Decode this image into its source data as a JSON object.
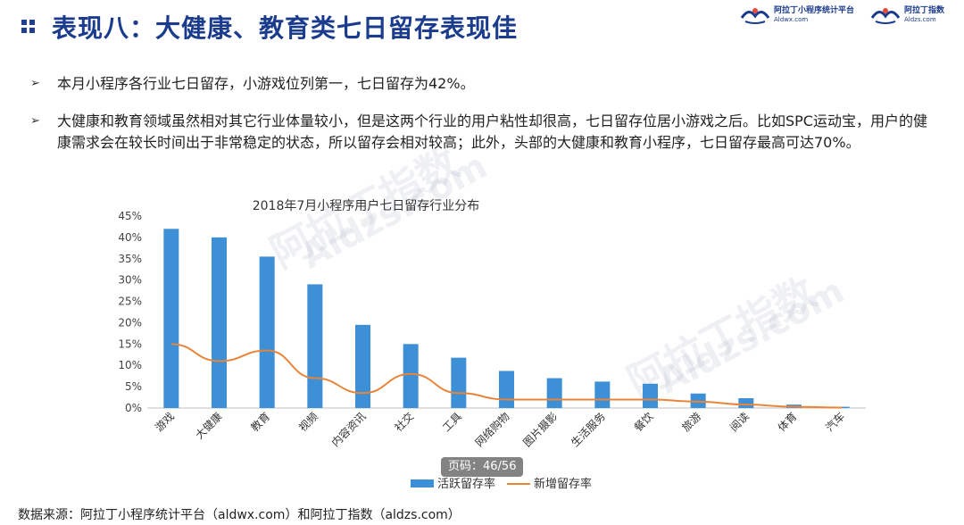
{
  "header": {
    "title": "表现八：大健康、教育类七日留存表现佳",
    "logos": [
      {
        "name": "阿拉丁小程序统计平台",
        "domain": "Aldwx.com"
      },
      {
        "name": "阿拉丁指数",
        "domain": "Aldzs.com"
      }
    ]
  },
  "bullets": [
    {
      "arrow": "➢",
      "text": "本月小程序各行业七日留存，小游戏位列第一，七日留存为42%。"
    },
    {
      "arrow": "➢",
      "text": "大健康和教育领域虽然相对其它行业体量较小，但是这两个行业的用户粘性却很高，七日留存位居小游戏之后。比如SPC运动宝，用户的健康需求会在较长时间出于非常稳定的状态，所以留存会相对较高；此外，头部的大健康和教育小程序，七日留存最高可达70%。"
    }
  ],
  "watermark": {
    "primary": "阿拉丁指数",
    "secondary": "Aldzs.com"
  },
  "page_badge": "页码：46/56",
  "source": "数据来源：阿拉丁小程序统计平台（aldwx.com）和阿拉丁指数（aldzs.com）",
  "colors": {
    "title": "#1b3c8c",
    "bar": "#3d8fd6",
    "line": "#e8853a",
    "axis": "#bfbfbf"
  },
  "chart_data": {
    "type": "bar",
    "title": "2018年7月小程序用户七日留存行业分布",
    "xlabel": "",
    "ylabel": "",
    "categories": [
      "游戏",
      "大健康",
      "教育",
      "视频",
      "内容资讯",
      "社交",
      "工具",
      "网络购物",
      "图片摄影",
      "生活服务",
      "餐饮",
      "旅游",
      "阅读",
      "体育",
      "汽车"
    ],
    "yticks": [
      "0%",
      "5%",
      "10%",
      "15%",
      "20%",
      "25%",
      "30%",
      "35%",
      "40%",
      "45%"
    ],
    "ylim": [
      0,
      45
    ],
    "series": [
      {
        "name": "活跃留存率",
        "type": "bar",
        "values": [
          42,
          40,
          35.5,
          29,
          19.5,
          15,
          11.8,
          8.7,
          7,
          6.2,
          5.7,
          3.4,
          2.3,
          0.8,
          0.3
        ]
      },
      {
        "name": "新增留存率",
        "type": "line",
        "values": [
          15,
          11,
          13.5,
          7,
          3.5,
          8,
          3.5,
          2,
          2,
          2,
          2,
          1.5,
          0.8,
          0.3,
          0.1
        ]
      }
    ],
    "legend_position": "bottom",
    "grid": false
  }
}
